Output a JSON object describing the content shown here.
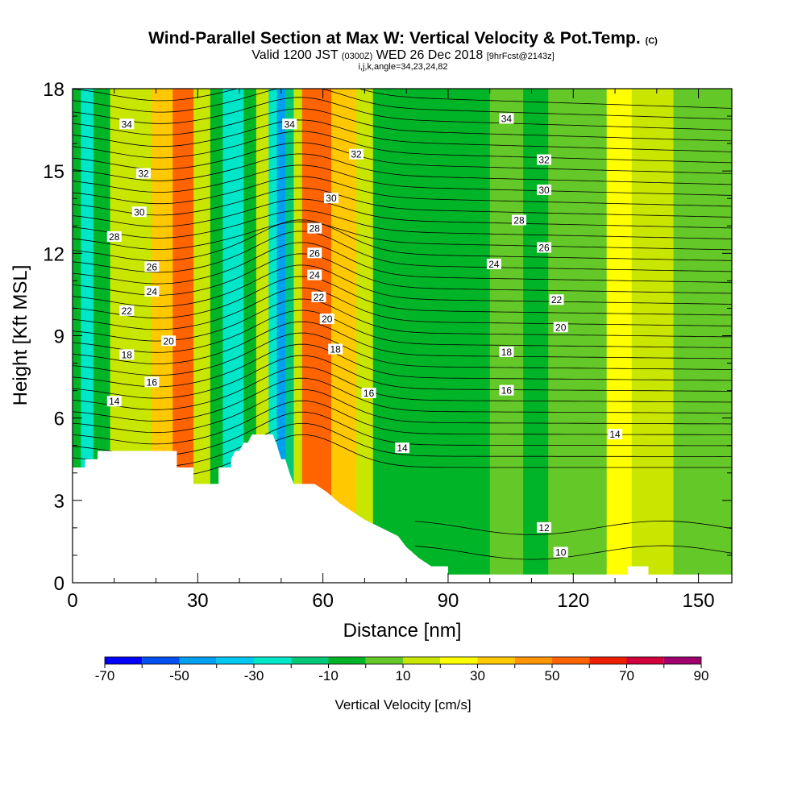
{
  "header": {
    "title": "Wind-Parallel Section at Max W: Vertical Velocity & Pot.Temp.",
    "title_suffix": "(C)",
    "subtitle_a": "Valid 1200 JST",
    "subtitle_b": "(0300Z)",
    "subtitle_c": "WED 26 Dec 2018",
    "subtitle_d": "[9hrFcst@2143z]",
    "subtitle_line2": "i,j,k,angle=34,23,24,82"
  },
  "chart_data": {
    "type": "heatmap",
    "xlabel": "Distance [nm]",
    "ylabel": "Height [Kft MSL]",
    "xlim": [
      0,
      158
    ],
    "ylim": [
      0,
      18
    ],
    "xticks": [
      0,
      30,
      60,
      90,
      120,
      150
    ],
    "yticks": [
      0,
      3,
      6,
      9,
      12,
      15,
      18
    ],
    "grid": false,
    "colorbar": {
      "title": "Vertical Velocity [cm/s]",
      "position": "bottom",
      "tick_labels": [
        -70,
        -50,
        -30,
        -10,
        10,
        30,
        50,
        70,
        90
      ],
      "bins": [
        -70,
        -60,
        -50,
        -40,
        -30,
        -20,
        -10,
        0,
        10,
        20,
        30,
        40,
        50,
        60,
        70,
        80,
        90
      ],
      "colors": [
        "#0000ff",
        "#0050f0",
        "#00a0f0",
        "#00c8f0",
        "#00e6c8",
        "#00c878",
        "#00b428",
        "#64c828",
        "#c8e600",
        "#ffff00",
        "#ffc800",
        "#ff9600",
        "#ff6400",
        "#f01e00",
        "#d2003c",
        "#a0006e",
        "#780096"
      ]
    },
    "vertical_velocity_bands": [
      {
        "x": [
          0,
          2
        ],
        "w": -10
      },
      {
        "x": [
          2,
          5
        ],
        "w": -30
      },
      {
        "x": [
          5,
          9
        ],
        "w": -10
      },
      {
        "x": [
          9,
          13
        ],
        "w": 10
      },
      {
        "x": [
          13,
          19
        ],
        "w": 10
      },
      {
        "x": [
          19,
          24
        ],
        "w": 30
      },
      {
        "x": [
          24,
          29
        ],
        "w": 50
      },
      {
        "x": [
          29,
          33
        ],
        "w": 10
      },
      {
        "x": [
          33,
          36
        ],
        "w": -10
      },
      {
        "x": [
          36,
          41
        ],
        "w": -30
      },
      {
        "x": [
          41,
          44
        ],
        "w": -10
      },
      {
        "x": [
          44,
          47
        ],
        "w": 10
      },
      {
        "x": [
          47,
          49
        ],
        "w": -30
      },
      {
        "x": [
          49,
          51
        ],
        "w": -50
      },
      {
        "x": [
          51,
          53
        ],
        "w": -20
      },
      {
        "x": [
          53,
          55
        ],
        "w": 10
      },
      {
        "x": [
          55,
          58
        ],
        "w": 50
      },
      {
        "x": [
          58,
          62
        ],
        "w": 50
      },
      {
        "x": [
          62,
          68
        ],
        "w": 30
      },
      {
        "x": [
          68,
          72
        ],
        "w": 10
      },
      {
        "x": [
          72,
          78
        ],
        "w": -10
      },
      {
        "x": [
          78,
          100
        ],
        "w": -10
      },
      {
        "x": [
          100,
          108
        ],
        "w": 0
      },
      {
        "x": [
          108,
          114
        ],
        "w": -10
      },
      {
        "x": [
          114,
          128
        ],
        "w": 0
      },
      {
        "x": [
          128,
          134
        ],
        "w": 20
      },
      {
        "x": [
          134,
          144
        ],
        "w": 10
      },
      {
        "x": [
          144,
          158
        ],
        "w": 5
      }
    ],
    "theta_contour_labels": [
      {
        "value": "34",
        "x": 13,
        "y": 16.7
      },
      {
        "value": "32",
        "x": 17,
        "y": 14.9
      },
      {
        "value": "30",
        "x": 16,
        "y": 13.5
      },
      {
        "value": "28",
        "x": 10,
        "y": 12.6
      },
      {
        "value": "26",
        "x": 19,
        "y": 11.5
      },
      {
        "value": "24",
        "x": 19,
        "y": 10.6
      },
      {
        "value": "22",
        "x": 13,
        "y": 9.9
      },
      {
        "value": "20",
        "x": 23,
        "y": 8.8
      },
      {
        "value": "18",
        "x": 13,
        "y": 8.3
      },
      {
        "value": "16",
        "x": 19,
        "y": 7.3
      },
      {
        "value": "14",
        "x": 10,
        "y": 6.6
      },
      {
        "value": "34",
        "x": 52,
        "y": 16.7
      },
      {
        "value": "32",
        "x": 68,
        "y": 15.6
      },
      {
        "value": "30",
        "x": 62,
        "y": 14
      },
      {
        "value": "28",
        "x": 58,
        "y": 12.9
      },
      {
        "value": "26",
        "x": 58,
        "y": 12
      },
      {
        "value": "24",
        "x": 58,
        "y": 11.2
      },
      {
        "value": "22",
        "x": 59,
        "y": 10.4
      },
      {
        "value": "20",
        "x": 61,
        "y": 9.6
      },
      {
        "value": "18",
        "x": 63,
        "y": 8.5
      },
      {
        "value": "16",
        "x": 71,
        "y": 6.9
      },
      {
        "value": "14",
        "x": 79,
        "y": 4.9
      },
      {
        "value": "34",
        "x": 104,
        "y": 16.9
      },
      {
        "value": "32",
        "x": 113,
        "y": 15.4
      },
      {
        "value": "30",
        "x": 113,
        "y": 14.3
      },
      {
        "value": "28",
        "x": 107,
        "y": 13.2
      },
      {
        "value": "26",
        "x": 113,
        "y": 12.2
      },
      {
        "value": "24",
        "x": 101,
        "y": 11.6
      },
      {
        "value": "22",
        "x": 116,
        "y": 10.3
      },
      {
        "value": "20",
        "x": 117,
        "y": 9.3
      },
      {
        "value": "18",
        "x": 104,
        "y": 8.4
      },
      {
        "value": "16",
        "x": 104,
        "y": 7.0
      },
      {
        "value": "14",
        "x": 130,
        "y": 5.4
      },
      {
        "value": "12",
        "x": 113,
        "y": 2.0
      },
      {
        "value": "10",
        "x": 117,
        "y": 1.1
      }
    ]
  }
}
